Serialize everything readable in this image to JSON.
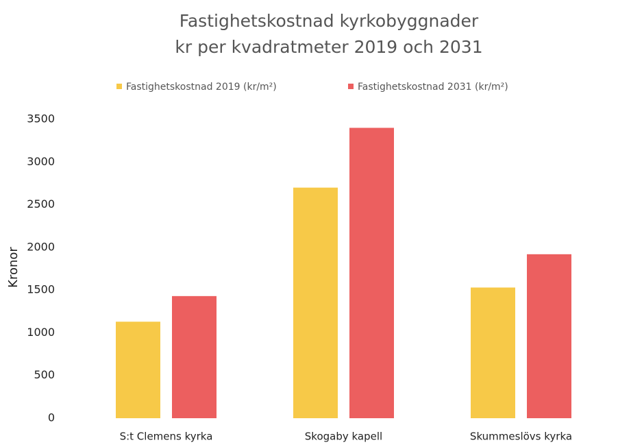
{
  "chart_data": {
    "type": "bar",
    "title": "Fastighetskostnad kyrkobyggnader",
    "subtitle": "kr per kvadratmeter 2019 och 2031",
    "y_label": "Kronor",
    "categories": [
      "S:t Clemens kyrka",
      "Skogaby kapell",
      "Skummeslövs kyrka"
    ],
    "series": [
      {
        "name": "Fastighetskostnad 2019 (kr/m²)",
        "color": "#f7c948",
        "values": [
          1130,
          2700,
          1530
        ]
      },
      {
        "name": "Fastighetskostnad 2031 (kr/m²)",
        "color": "#ec5f5f",
        "values": [
          1430,
          3400,
          1920
        ]
      }
    ],
    "ylim": [
      0,
      3500
    ],
    "yticks": [
      0,
      500,
      1000,
      1500,
      2000,
      2500,
      3000,
      3500
    ],
    "grid": false,
    "legend": "top"
  }
}
